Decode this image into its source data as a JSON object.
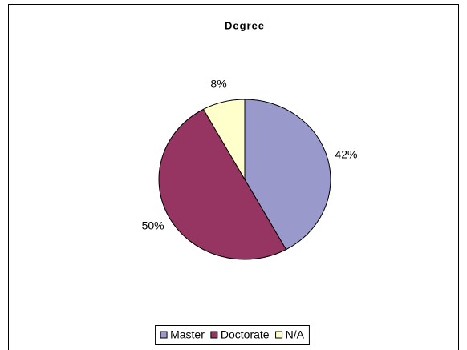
{
  "chart_data": {
    "type": "pie",
    "title": "Degree",
    "categories": [
      "Master",
      "Doctorate",
      "N/A"
    ],
    "values": [
      42,
      50,
      8
    ],
    "value_labels": [
      "42%",
      "50%",
      "8%"
    ],
    "colors": [
      "#9999cc",
      "#963462",
      "#ffffcc"
    ],
    "legend": "bottom"
  }
}
